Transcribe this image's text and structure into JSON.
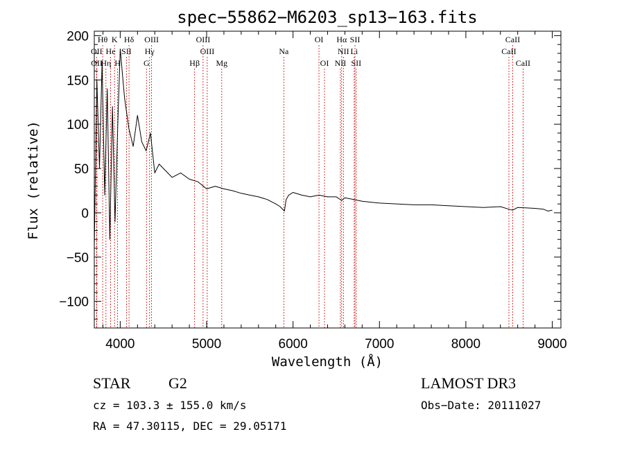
{
  "chart_data": {
    "type": "line",
    "title": "spec−55862−M6203_sp13−163.fits",
    "xlabel": "Wavelength (Å)",
    "ylabel": "Flux (relative)",
    "xlim": [
      3700,
      9100
    ],
    "ylim": [
      -130,
      205
    ],
    "x_ticks": [
      4000,
      5000,
      6000,
      7000,
      8000,
      9000
    ],
    "x_tick_labels": [
      "4000",
      "5000",
      "6000",
      "7000",
      "8000",
      "9000"
    ],
    "y_ticks": [
      -100,
      -50,
      0,
      50,
      100,
      150,
      200
    ],
    "y_tick_labels": [
      "−100",
      "−50",
      "0",
      "50",
      "100",
      "150",
      "200"
    ],
    "series": [
      {
        "name": "flux",
        "x": [
          3700,
          3730,
          3760,
          3790,
          3820,
          3850,
          3880,
          3910,
          3940,
          3970,
          4000,
          4050,
          4100,
          4150,
          4200,
          4250,
          4300,
          4350,
          4400,
          4450,
          4500,
          4600,
          4700,
          4800,
          4900,
          5000,
          5100,
          5200,
          5300,
          5400,
          5500,
          5600,
          5700,
          5800,
          5850,
          5900,
          5920,
          5950,
          6000,
          6100,
          6200,
          6300,
          6400,
          6500,
          6563,
          6600,
          6700,
          6800,
          6900,
          7000,
          7200,
          7400,
          7600,
          7800,
          8000,
          8200,
          8400,
          8500,
          8542,
          8600,
          8800,
          8900,
          8950,
          9000
        ],
        "values": [
          -40,
          150,
          50,
          170,
          20,
          140,
          -30,
          120,
          -10,
          95,
          185,
          130,
          95,
          75,
          110,
          80,
          70,
          90,
          45,
          55,
          50,
          40,
          45,
          38,
          35,
          27,
          30,
          27,
          25,
          22,
          20,
          18,
          15,
          10,
          7,
          2,
          15,
          20,
          23,
          20,
          18,
          20,
          18,
          18,
          14,
          17,
          15,
          13,
          12,
          11,
          10,
          9,
          9,
          8,
          7,
          6,
          7,
          4,
          3,
          6,
          5,
          4,
          2,
          3
        ]
      }
    ],
    "spectral_lines": [
      {
        "label": "Hθ",
        "wavelength": 3797,
        "row": 1
      },
      {
        "label": "K",
        "wavelength": 3934,
        "row": 1
      },
      {
        "label": "Hδ",
        "wavelength": 4102,
        "row": 1
      },
      {
        "label": "OIII",
        "wavelength": 4363,
        "row": 1
      },
      {
        "label": "OIII",
        "wavelength": 4959,
        "row": 1
      },
      {
        "label": "OI",
        "wavelength": 6300,
        "row": 1
      },
      {
        "label": "Hα",
        "wavelength": 6563,
        "row": 1
      },
      {
        "label": "SII",
        "wavelength": 6717,
        "row": 1
      },
      {
        "label": "CaII",
        "wavelength": 8542,
        "row": 1
      },
      {
        "label": "OII",
        "wavelength": 3727,
        "row": 2
      },
      {
        "label": "He",
        "wavelength": 3889,
        "row": 2
      },
      {
        "label": "SII",
        "wavelength": 4072,
        "row": 2
      },
      {
        "label": "Hγ",
        "wavelength": 4340,
        "row": 2
      },
      {
        "label": "OIII",
        "wavelength": 5007,
        "row": 2
      },
      {
        "label": "Na",
        "wavelength": 5893,
        "row": 2
      },
      {
        "label": "NII",
        "wavelength": 6583,
        "row": 2
      },
      {
        "label": "Li",
        "wavelength": 6708,
        "row": 2
      },
      {
        "label": "CaII",
        "wavelength": 8498,
        "row": 2
      },
      {
        "label": "OII",
        "wavelength": 3729,
        "row": 3
      },
      {
        "label": "Hη",
        "wavelength": 3835,
        "row": 3
      },
      {
        "label": "H",
        "wavelength": 3969,
        "row": 3
      },
      {
        "label": "G",
        "wavelength": 4304,
        "row": 3
      },
      {
        "label": "Hβ",
        "wavelength": 4861,
        "row": 3
      },
      {
        "label": "Mg",
        "wavelength": 5175,
        "row": 3
      },
      {
        "label": "OI",
        "wavelength": 6364,
        "row": 3
      },
      {
        "label": "NII",
        "wavelength": 6548,
        "row": 3
      },
      {
        "label": "SII",
        "wavelength": 6731,
        "row": 3
      },
      {
        "label": "CaII",
        "wavelength": 8662,
        "row": 3
      }
    ]
  },
  "info": {
    "class": "STAR",
    "subclass": "G2",
    "survey": "LAMOST DR3",
    "cz": "cz = 103.3 ± 155.0 km/s",
    "obs_date": "Obs−Date: 20111027",
    "coords": "RA =  47.30115, DEC =  29.05171"
  },
  "colors": {
    "line_marker": "#cc0000",
    "spectrum": "#000000",
    "axes": "#000000"
  }
}
